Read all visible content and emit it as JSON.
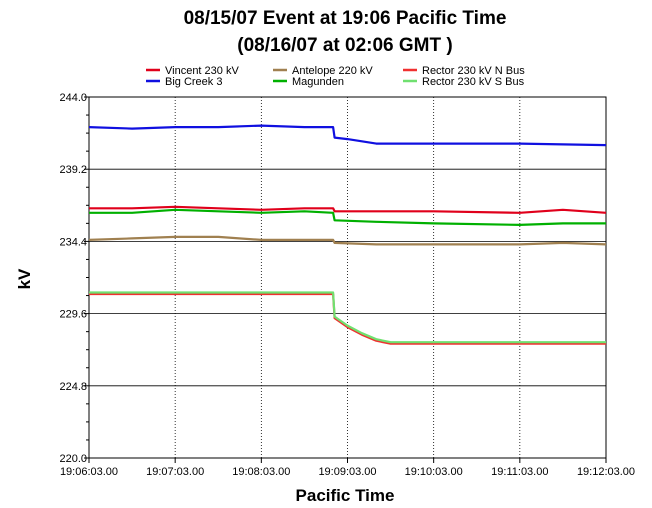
{
  "chart_data": {
    "type": "line",
    "title_lines": [
      "08/15/07  Event at 19:06 Pacific Time",
      "(08/16/07 at 02:06 GMT )"
    ],
    "xlabel": "Pacific Time",
    "ylabel": "kV",
    "ylim": [
      220.0,
      244.0
    ],
    "y_ticks": [
      "220.0",
      "224.8",
      "229.6",
      "234.4",
      "239.2",
      "244.0"
    ],
    "x_ticks": [
      "19:06:03.00",
      "19:07:03.00",
      "19:08:03.00",
      "19:09:03.00",
      "19:10:03.00",
      "19:11:03.00",
      "19:12:03.00"
    ],
    "x_range_seconds": [
      0,
      360
    ],
    "grid": true,
    "legend_position": "top",
    "series": [
      {
        "name": "Vincent 230 kV",
        "color": "#e0001b",
        "points": [
          [
            0,
            236.6
          ],
          [
            30,
            236.6
          ],
          [
            60,
            236.7
          ],
          [
            90,
            236.6
          ],
          [
            120,
            236.5
          ],
          [
            150,
            236.6
          ],
          [
            170,
            236.6
          ],
          [
            171,
            236.4
          ],
          [
            190,
            236.4
          ],
          [
            240,
            236.4
          ],
          [
            300,
            236.3
          ],
          [
            330,
            236.5
          ],
          [
            360,
            236.3
          ]
        ]
      },
      {
        "name": "Big Creek 3",
        "color": "#1010e0",
        "points": [
          [
            0,
            242.0
          ],
          [
            30,
            241.9
          ],
          [
            60,
            242.0
          ],
          [
            90,
            242.0
          ],
          [
            120,
            242.1
          ],
          [
            150,
            242.0
          ],
          [
            170,
            242.0
          ],
          [
            171,
            241.3
          ],
          [
            180,
            241.2
          ],
          [
            200,
            240.9
          ],
          [
            240,
            240.9
          ],
          [
            300,
            240.9
          ],
          [
            360,
            240.8
          ]
        ]
      },
      {
        "name": "Antelope 220 kV",
        "color": "#a08050",
        "points": [
          [
            0,
            234.5
          ],
          [
            30,
            234.6
          ],
          [
            60,
            234.7
          ],
          [
            90,
            234.7
          ],
          [
            120,
            234.5
          ],
          [
            150,
            234.5
          ],
          [
            170,
            234.5
          ],
          [
            171,
            234.3
          ],
          [
            200,
            234.2
          ],
          [
            240,
            234.2
          ],
          [
            300,
            234.2
          ],
          [
            330,
            234.3
          ],
          [
            360,
            234.2
          ]
        ]
      },
      {
        "name": "Magunden",
        "color": "#00b000",
        "points": [
          [
            0,
            236.3
          ],
          [
            30,
            236.3
          ],
          [
            60,
            236.5
          ],
          [
            90,
            236.4
          ],
          [
            120,
            236.3
          ],
          [
            150,
            236.4
          ],
          [
            170,
            236.3
          ],
          [
            171,
            235.8
          ],
          [
            200,
            235.7
          ],
          [
            240,
            235.6
          ],
          [
            300,
            235.5
          ],
          [
            330,
            235.6
          ],
          [
            360,
            235.6
          ]
        ]
      },
      {
        "name": "Rector 230 kV N Bus",
        "color": "#f03030",
        "points": [
          [
            0,
            230.9
          ],
          [
            50,
            230.9
          ],
          [
            100,
            230.9
          ],
          [
            150,
            230.9
          ],
          [
            170,
            230.9
          ],
          [
            171,
            229.3
          ],
          [
            180,
            228.7
          ],
          [
            190,
            228.2
          ],
          [
            200,
            227.8
          ],
          [
            210,
            227.6
          ],
          [
            240,
            227.6
          ],
          [
            300,
            227.6
          ],
          [
            360,
            227.6
          ]
        ]
      },
      {
        "name": "Rector 230 kV S Bus",
        "color": "#70e070",
        "points": [
          [
            0,
            231.0
          ],
          [
            50,
            231.0
          ],
          [
            100,
            231.0
          ],
          [
            150,
            231.0
          ],
          [
            170,
            231.0
          ],
          [
            171,
            229.4
          ],
          [
            180,
            228.8
          ],
          [
            190,
            228.3
          ],
          [
            200,
            227.9
          ],
          [
            210,
            227.7
          ],
          [
            240,
            227.7
          ],
          [
            300,
            227.7
          ],
          [
            360,
            227.7
          ]
        ]
      }
    ]
  }
}
